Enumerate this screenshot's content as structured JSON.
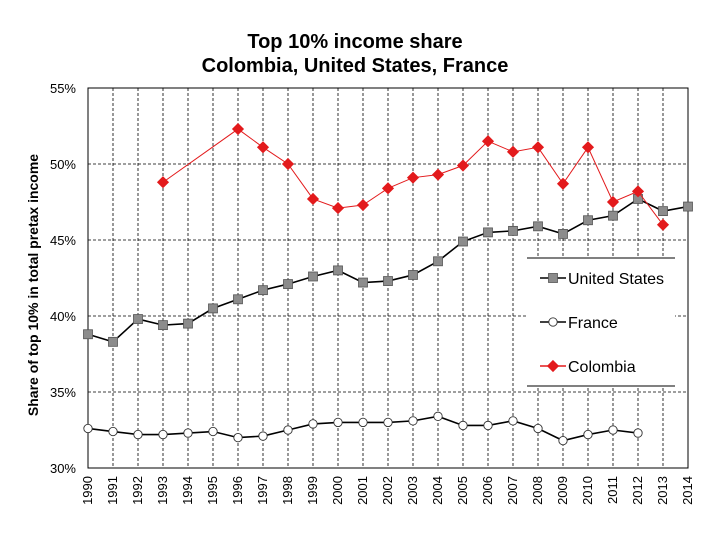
{
  "chart_data": {
    "type": "line",
    "title_line1": "Top 10% income share",
    "title_line2": "Colombia, United States, France",
    "ylabel": "Share of top 10% in total pretax income",
    "xlabel": "",
    "ylim": [
      30,
      55
    ],
    "yticks": [
      30,
      35,
      40,
      45,
      50,
      55
    ],
    "ytick_labels": [
      "30%",
      "35%",
      "40%",
      "45%",
      "50%",
      "55%"
    ],
    "x": [
      1990,
      1991,
      1992,
      1993,
      1994,
      1995,
      1996,
      1997,
      1998,
      1999,
      2000,
      2001,
      2002,
      2003,
      2004,
      2005,
      2006,
      2007,
      2008,
      2009,
      2010,
      2011,
      2012,
      2013,
      2014
    ],
    "grid": "vertical and horizontal dashed lines",
    "legend_position": "right",
    "series": [
      {
        "name": "United States",
        "color": "#000000",
        "marker": "square",
        "marker_fill": "#8c8c8c",
        "values": [
          38.8,
          38.3,
          39.8,
          39.4,
          39.5,
          40.5,
          41.1,
          41.7,
          42.1,
          42.6,
          43.0,
          42.2,
          42.3,
          42.7,
          43.6,
          44.9,
          45.5,
          45.6,
          45.9,
          45.4,
          46.3,
          46.6,
          47.7,
          46.9,
          47.2
        ]
      },
      {
        "name": "France",
        "color": "#000000",
        "marker": "circle",
        "marker_fill": "#ffffff",
        "values": [
          32.6,
          32.4,
          32.2,
          32.2,
          32.3,
          32.4,
          32.0,
          32.1,
          32.5,
          32.9,
          33.0,
          33.0,
          33.0,
          33.1,
          33.4,
          32.8,
          32.8,
          33.1,
          32.6,
          31.8,
          32.2,
          32.5,
          32.3,
          null,
          null
        ]
      },
      {
        "name": "Colombia",
        "color": "#e31a1c",
        "marker": "diamond",
        "marker_fill": "#e31a1c",
        "values": [
          null,
          null,
          null,
          48.8,
          null,
          null,
          52.3,
          51.1,
          50.0,
          47.7,
          47.1,
          47.3,
          48.4,
          49.1,
          49.3,
          49.9,
          51.5,
          50.8,
          51.1,
          48.7,
          51.1,
          47.5,
          48.2,
          46.0,
          null
        ]
      }
    ]
  }
}
